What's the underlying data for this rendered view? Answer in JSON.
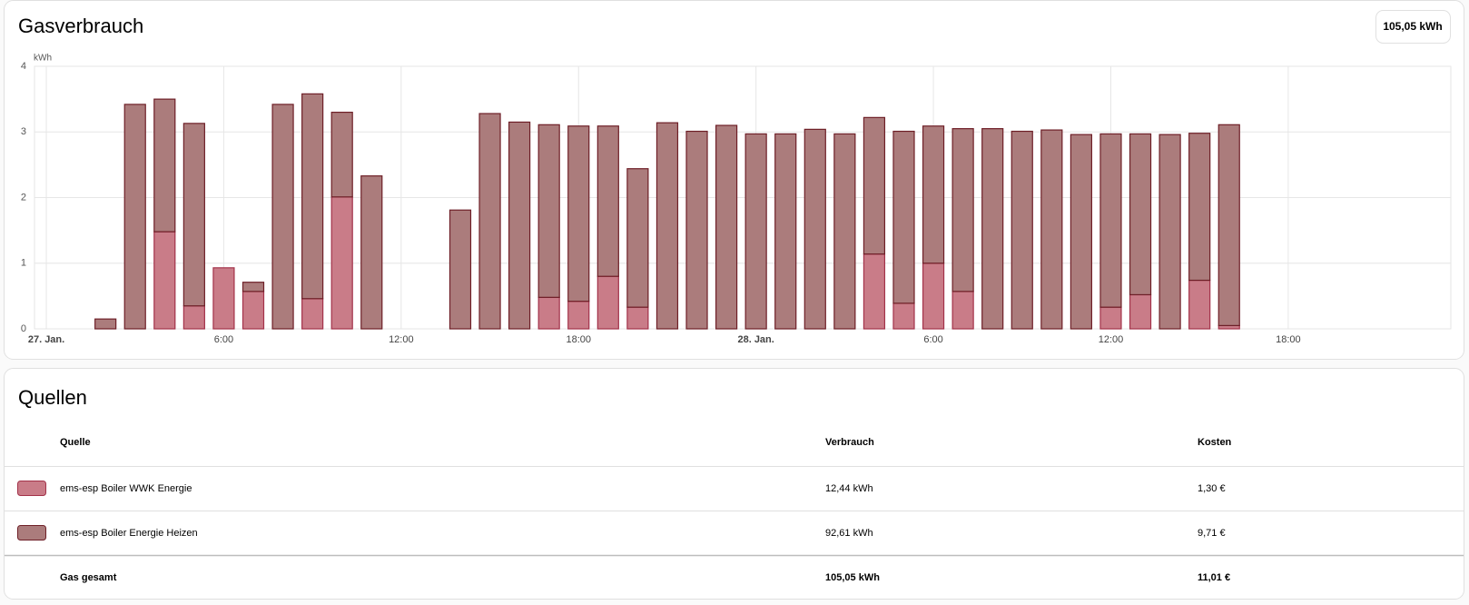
{
  "chart_data": {
    "type": "stacked-bar",
    "title": "Gasverbrauch",
    "total_label": "105,05 kWh",
    "y_unit": "kWh",
    "x": [
      2,
      3,
      4,
      5,
      6,
      7,
      8,
      9,
      10,
      11,
      14,
      15,
      16,
      17,
      18,
      19,
      20,
      21,
      22,
      23,
      24,
      25,
      26,
      27,
      28,
      29,
      30,
      31,
      32,
      33,
      34,
      35,
      36,
      37,
      38,
      39,
      40
    ],
    "xlim": [
      -0.4,
      47.5
    ],
    "xticks": [
      {
        "value": 0,
        "label": "27. Jan."
      },
      {
        "value": 6,
        "label": "6:00"
      },
      {
        "value": 12,
        "label": "12:00"
      },
      {
        "value": 18,
        "label": "18:00"
      },
      {
        "value": 24,
        "label": "28. Jan."
      },
      {
        "value": 30,
        "label": "6:00"
      },
      {
        "value": 36,
        "label": "12:00"
      },
      {
        "value": 42,
        "label": "18:00"
      }
    ],
    "ylim": [
      0,
      4
    ],
    "yticks": [
      0,
      1,
      2,
      3,
      4
    ],
    "grid": true,
    "series": [
      {
        "name": "ems-esp Boiler WWK Energie",
        "color": "#c97c88",
        "stroke": "#a3324a",
        "values": [
          0,
          0,
          1.48,
          0.35,
          0.93,
          0.57,
          0,
          0.46,
          2.01,
          0,
          0,
          0,
          0,
          0.48,
          0.42,
          0.8,
          0.33,
          0,
          0,
          0,
          0,
          0,
          0,
          0,
          1.14,
          0.39,
          1.0,
          0.57,
          0,
          0,
          0,
          0,
          0.33,
          0.52,
          0,
          0.74,
          0.05
        ]
      },
      {
        "name": "ems-esp Boiler Energie Heizen",
        "color": "#ab7c7c",
        "stroke": "#6e1f27",
        "values": [
          0.15,
          3.42,
          2.02,
          2.78,
          0,
          0.14,
          3.42,
          3.12,
          1.29,
          2.33,
          1.81,
          3.28,
          3.15,
          2.63,
          2.67,
          2.29,
          2.11,
          3.14,
          3.01,
          3.1,
          2.97,
          2.97,
          3.04,
          2.97,
          2.08,
          2.62,
          2.09,
          2.48,
          3.05,
          3.01,
          3.03,
          2.96,
          2.64,
          2.45,
          2.96,
          2.24,
          3.06
        ]
      }
    ]
  },
  "table": {
    "title": "Quellen",
    "columns": [
      "Quelle",
      "Verbrauch",
      "Kosten"
    ],
    "rows": [
      {
        "consumption": "12,44 kWh",
        "cost": "1,30 €"
      },
      {
        "consumption": "92,61 kWh",
        "cost": "9,71 €"
      }
    ],
    "total": {
      "label": "Gas gesamt",
      "consumption": "105,05 kWh",
      "cost": "11,01 €"
    }
  }
}
